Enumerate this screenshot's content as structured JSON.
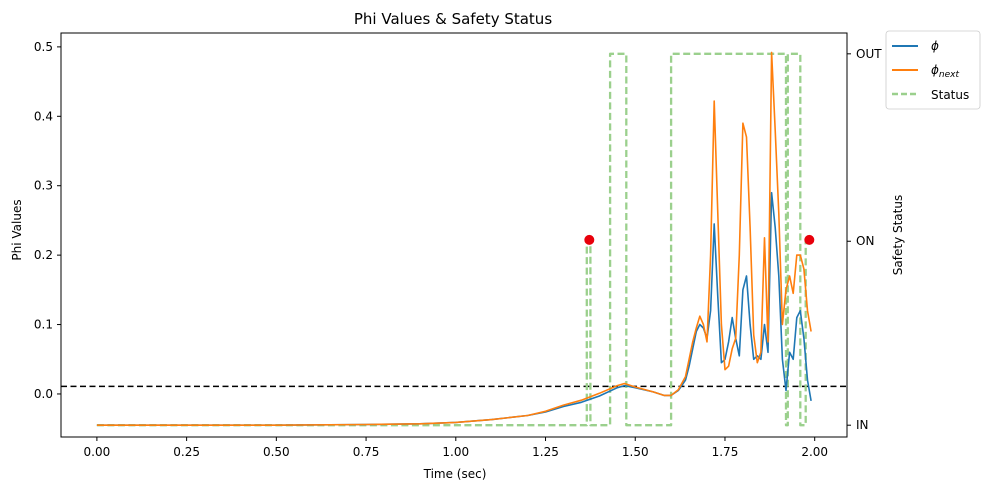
{
  "chart_data": {
    "type": "line",
    "title": "Phi Values & Safety Status",
    "xlabel": "Time (sec)",
    "ylabel": "Phi Values",
    "y2label": "Safety Status",
    "xlim": [
      -0.1,
      2.09
    ],
    "ylim": [
      -0.062,
      0.52
    ],
    "x_ticks": [
      0.0,
      0.25,
      0.5,
      0.75,
      1.0,
      1.25,
      1.5,
      1.75,
      2.0
    ],
    "x_tick_labels": [
      "0.00",
      "0.25",
      "0.50",
      "0.75",
      "1.00",
      "1.25",
      "1.50",
      "1.75",
      "2.00"
    ],
    "y_ticks": [
      0.0,
      0.1,
      0.2,
      0.3,
      0.4,
      0.5
    ],
    "y_tick_labels": [
      "0.0",
      "0.1",
      "0.2",
      "0.3",
      "0.4",
      "0.5"
    ],
    "y2_ticks": [
      {
        "value": -0.045,
        "label": "IN"
      },
      {
        "value": 0.22,
        "label": "ON"
      },
      {
        "value": 0.49,
        "label": "OUT"
      }
    ],
    "threshold": 0.011,
    "grid": false,
    "legend_position": "outside-top-right",
    "series": [
      {
        "name": "ϕ",
        "color": "#1f77b4",
        "style": "solid",
        "points": [
          [
            0.0,
            -0.045
          ],
          [
            0.25,
            -0.045
          ],
          [
            0.5,
            -0.045
          ],
          [
            0.75,
            -0.044
          ],
          [
            0.9,
            -0.043
          ],
          [
            1.0,
            -0.041
          ],
          [
            1.1,
            -0.037
          ],
          [
            1.2,
            -0.031
          ],
          [
            1.25,
            -0.026
          ],
          [
            1.3,
            -0.018
          ],
          [
            1.35,
            -0.012
          ],
          [
            1.4,
            -0.003
          ],
          [
            1.45,
            0.009
          ],
          [
            1.47,
            0.012
          ],
          [
            1.5,
            0.009
          ],
          [
            1.55,
            0.003
          ],
          [
            1.58,
            -0.002
          ],
          [
            1.6,
            -0.002
          ],
          [
            1.62,
            0.005
          ],
          [
            1.64,
            0.02
          ],
          [
            1.65,
            0.04
          ],
          [
            1.66,
            0.065
          ],
          [
            1.67,
            0.09
          ],
          [
            1.68,
            0.1
          ],
          [
            1.69,
            0.095
          ],
          [
            1.7,
            0.08
          ],
          [
            1.71,
            0.12
          ],
          [
            1.72,
            0.245
          ],
          [
            1.73,
            0.14
          ],
          [
            1.74,
            0.045
          ],
          [
            1.75,
            0.05
          ],
          [
            1.76,
            0.075
          ],
          [
            1.77,
            0.11
          ],
          [
            1.78,
            0.08
          ],
          [
            1.79,
            0.055
          ],
          [
            1.8,
            0.15
          ],
          [
            1.81,
            0.17
          ],
          [
            1.82,
            0.1
          ],
          [
            1.83,
            0.05
          ],
          [
            1.84,
            0.055
          ],
          [
            1.85,
            0.05
          ],
          [
            1.86,
            0.1
          ],
          [
            1.87,
            0.06
          ],
          [
            1.88,
            0.29
          ],
          [
            1.89,
            0.24
          ],
          [
            1.9,
            0.17
          ],
          [
            1.91,
            0.05
          ],
          [
            1.92,
            0.005
          ],
          [
            1.93,
            0.06
          ],
          [
            1.94,
            0.05
          ],
          [
            1.95,
            0.11
          ],
          [
            1.96,
            0.12
          ],
          [
            1.97,
            0.08
          ],
          [
            1.98,
            0.02
          ],
          [
            1.99,
            -0.01
          ]
        ]
      },
      {
        "name": "ϕnext",
        "color": "#ff7f0e",
        "style": "solid",
        "points": [
          [
            0.0,
            -0.045
          ],
          [
            0.25,
            -0.045
          ],
          [
            0.5,
            -0.045
          ],
          [
            0.75,
            -0.044
          ],
          [
            0.9,
            -0.043
          ],
          [
            1.0,
            -0.041
          ],
          [
            1.1,
            -0.037
          ],
          [
            1.2,
            -0.031
          ],
          [
            1.25,
            -0.025
          ],
          [
            1.3,
            -0.016
          ],
          [
            1.35,
            -0.009
          ],
          [
            1.4,
            0.001
          ],
          [
            1.45,
            0.012
          ],
          [
            1.47,
            0.015
          ],
          [
            1.5,
            0.01
          ],
          [
            1.55,
            0.003
          ],
          [
            1.58,
            -0.002
          ],
          [
            1.6,
            -0.002
          ],
          [
            1.62,
            0.006
          ],
          [
            1.64,
            0.025
          ],
          [
            1.65,
            0.05
          ],
          [
            1.66,
            0.075
          ],
          [
            1.67,
            0.095
          ],
          [
            1.68,
            0.112
          ],
          [
            1.69,
            0.1
          ],
          [
            1.7,
            0.075
          ],
          [
            1.71,
            0.2
          ],
          [
            1.72,
            0.422
          ],
          [
            1.73,
            0.26
          ],
          [
            1.74,
            0.1
          ],
          [
            1.75,
            0.035
          ],
          [
            1.76,
            0.04
          ],
          [
            1.77,
            0.065
          ],
          [
            1.78,
            0.08
          ],
          [
            1.79,
            0.2
          ],
          [
            1.8,
            0.39
          ],
          [
            1.81,
            0.37
          ],
          [
            1.82,
            0.24
          ],
          [
            1.83,
            0.085
          ],
          [
            1.84,
            0.045
          ],
          [
            1.85,
            0.06
          ],
          [
            1.86,
            0.225
          ],
          [
            1.87,
            0.075
          ],
          [
            1.88,
            0.492
          ],
          [
            1.89,
            0.38
          ],
          [
            1.9,
            0.26
          ],
          [
            1.91,
            0.1
          ],
          [
            1.92,
            0.15
          ],
          [
            1.93,
            0.17
          ],
          [
            1.94,
            0.145
          ],
          [
            1.95,
            0.2
          ],
          [
            1.96,
            0.2
          ],
          [
            1.97,
            0.18
          ],
          [
            1.98,
            0.12
          ],
          [
            1.99,
            0.09
          ]
        ]
      },
      {
        "name": "Status",
        "color": "#9bd08d",
        "style": "dashed",
        "points": [
          [
            0.0,
            -0.045
          ],
          [
            1.365,
            -0.045
          ],
          [
            1.365,
            0.22
          ],
          [
            1.375,
            0.22
          ],
          [
            1.375,
            -0.045
          ],
          [
            1.43,
            -0.045
          ],
          [
            1.43,
            0.49
          ],
          [
            1.475,
            0.49
          ],
          [
            1.475,
            -0.045
          ],
          [
            1.6,
            -0.045
          ],
          [
            1.6,
            0.49
          ],
          [
            1.92,
            0.49
          ],
          [
            1.92,
            -0.045
          ],
          [
            1.925,
            -0.045
          ],
          [
            1.925,
            0.49
          ],
          [
            1.96,
            0.49
          ],
          [
            1.96,
            -0.045
          ],
          [
            1.975,
            -0.045
          ],
          [
            1.975,
            0.22
          ],
          [
            1.985,
            0.22
          ]
        ]
      }
    ],
    "markers": [
      {
        "x": 1.372,
        "y": 0.222,
        "color": "#e8000b"
      },
      {
        "x": 1.985,
        "y": 0.222,
        "color": "#e8000b"
      }
    ]
  }
}
